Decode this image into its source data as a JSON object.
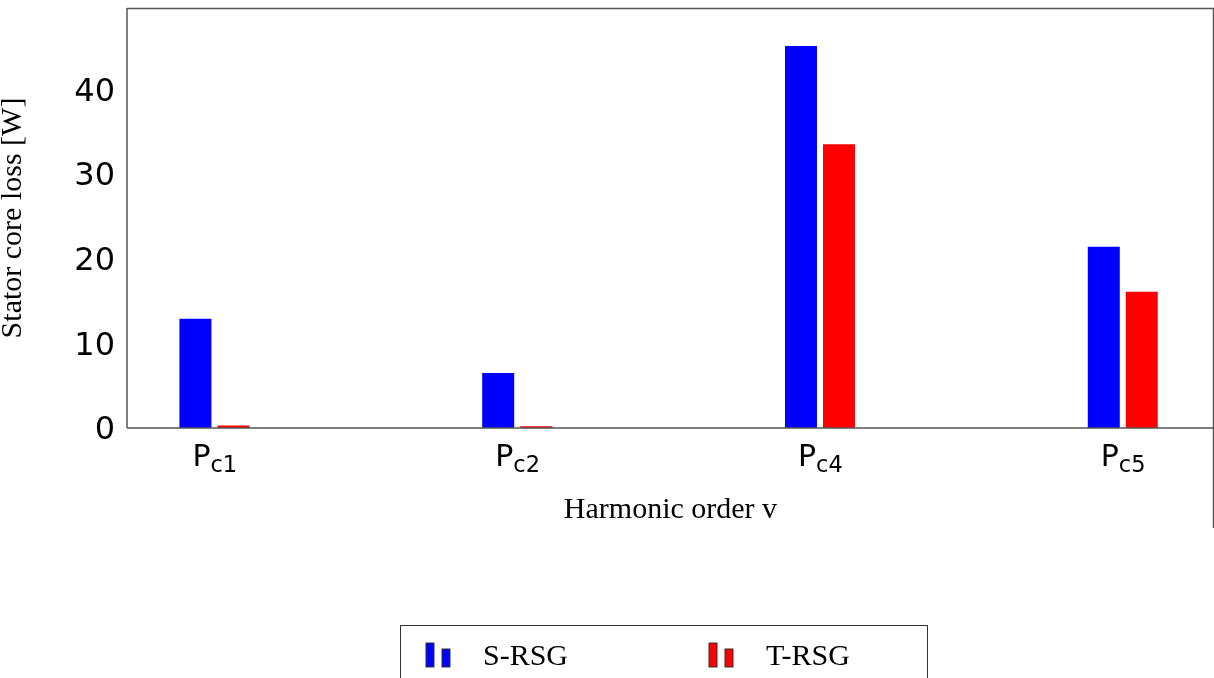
{
  "chart_data": {
    "type": "bar",
    "xlabel": "Harmonic order v",
    "ylabel": "Stator core loss [W]",
    "categories": [
      "P$_{c1}$",
      "P$_{c2}$",
      "P$_{c4}$",
      "P$_{c5}$"
    ],
    "series": [
      {
        "name": "S-RSG",
        "color": "#0000ff",
        "values": [
          12.9,
          6.5,
          45.1,
          21.4
        ]
      },
      {
        "name": "T-RSG",
        "color": "#ff0000",
        "values": [
          0.3,
          0.2,
          33.5,
          16.1
        ]
      }
    ],
    "ylim": [
      0,
      49.6
    ],
    "yticks": [
      0,
      10,
      20,
      30,
      40
    ],
    "legend": "bottom"
  }
}
